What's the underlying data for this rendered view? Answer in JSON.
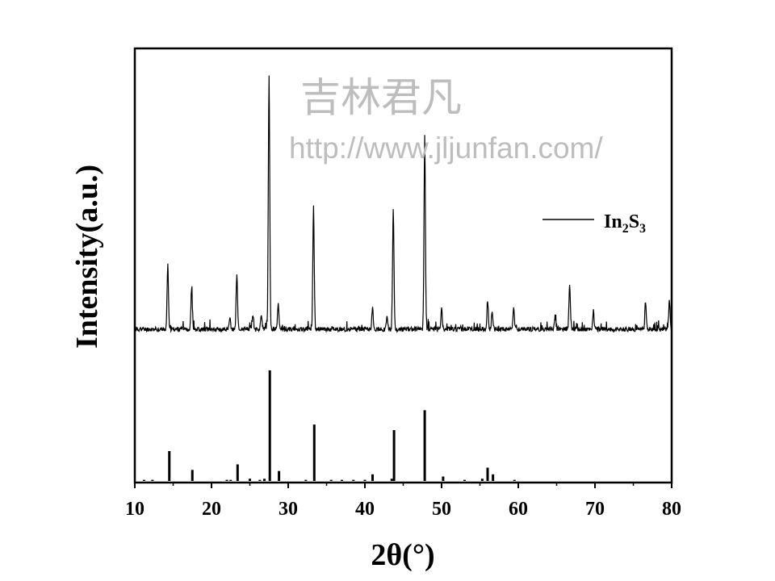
{
  "chart_data": {
    "type": "line",
    "title": "",
    "xlabel": "2θ(°)",
    "ylabel": "Intensity(a.u.)",
    "xlim": [
      10,
      80
    ],
    "x_ticks": [
      10,
      20,
      30,
      40,
      50,
      60,
      70,
      80
    ],
    "y_ticks_shown": false,
    "legend": {
      "label_base": "In",
      "label_sub1": "2",
      "label_mid": "S",
      "label_sub2": "3",
      "position": "upper-right"
    },
    "series": [
      {
        "name": "In2S3",
        "kind": "xrd-pattern",
        "peaks": [
          {
            "x": 14.3,
            "y": 25
          },
          {
            "x": 17.4,
            "y": 16
          },
          {
            "x": 22.4,
            "y": 4
          },
          {
            "x": 23.3,
            "y": 22
          },
          {
            "x": 25.4,
            "y": 6
          },
          {
            "x": 26.5,
            "y": 6
          },
          {
            "x": 27.5,
            "y": 100
          },
          {
            "x": 28.7,
            "y": 10
          },
          {
            "x": 33.3,
            "y": 48
          },
          {
            "x": 41.0,
            "y": 9
          },
          {
            "x": 42.9,
            "y": 5
          },
          {
            "x": 43.7,
            "y": 47
          },
          {
            "x": 47.8,
            "y": 74
          },
          {
            "x": 50.0,
            "y": 8
          },
          {
            "x": 56.0,
            "y": 10
          },
          {
            "x": 56.6,
            "y": 7
          },
          {
            "x": 59.4,
            "y": 9
          },
          {
            "x": 64.8,
            "y": 5
          },
          {
            "x": 66.7,
            "y": 18
          },
          {
            "x": 69.8,
            "y": 7
          },
          {
            "x": 76.6,
            "y": 11
          },
          {
            "x": 79.7,
            "y": 11
          }
        ]
      },
      {
        "name": "reference",
        "kind": "stick",
        "sticks": [
          {
            "x": 11.2,
            "y": 1
          },
          {
            "x": 12.3,
            "y": 1
          },
          {
            "x": 14.5,
            "y": 27
          },
          {
            "x": 17.5,
            "y": 10
          },
          {
            "x": 22.0,
            "y": 1
          },
          {
            "x": 22.5,
            "y": 1
          },
          {
            "x": 23.4,
            "y": 15
          },
          {
            "x": 25.0,
            "y": 2
          },
          {
            "x": 26.3,
            "y": 1
          },
          {
            "x": 26.9,
            "y": 2
          },
          {
            "x": 27.6,
            "y": 100
          },
          {
            "x": 28.8,
            "y": 9
          },
          {
            "x": 32.3,
            "y": 1
          },
          {
            "x": 33.4,
            "y": 51
          },
          {
            "x": 35.6,
            "y": 1
          },
          {
            "x": 37.0,
            "y": 1
          },
          {
            "x": 38.5,
            "y": 1
          },
          {
            "x": 40.0,
            "y": 1
          },
          {
            "x": 41.0,
            "y": 6
          },
          {
            "x": 43.5,
            "y": 2
          },
          {
            "x": 43.8,
            "y": 46
          },
          {
            "x": 47.8,
            "y": 64
          },
          {
            "x": 50.2,
            "y": 4
          },
          {
            "x": 53.0,
            "y": 1
          },
          {
            "x": 55.3,
            "y": 2
          },
          {
            "x": 56.0,
            "y": 12
          },
          {
            "x": 56.7,
            "y": 6
          },
          {
            "x": 59.5,
            "y": 1
          }
        ]
      }
    ]
  },
  "watermark": {
    "line1": "吉林君凡",
    "line2": "http://www.jljunfan.com/"
  },
  "colors": {
    "line": "#000000",
    "watermark": "#bdbdbd",
    "background": "#ffffff"
  }
}
